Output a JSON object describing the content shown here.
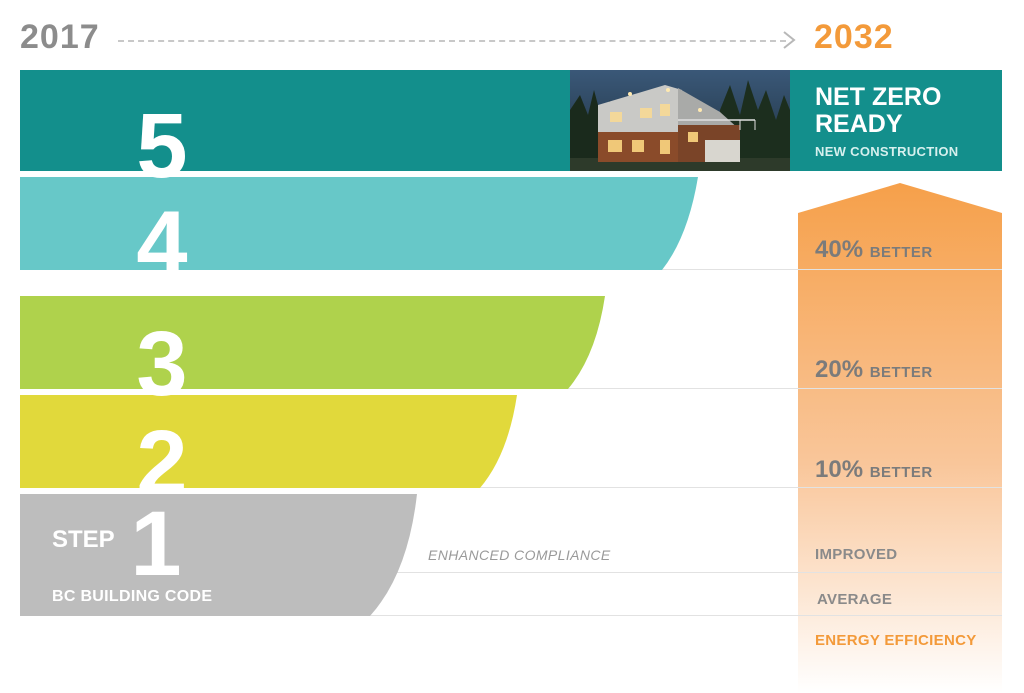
{
  "timeline": {
    "start_year": "2017",
    "end_year": "2032"
  },
  "steps": [
    {
      "number": "5",
      "color": "#138f8c"
    },
    {
      "number": "4",
      "color": "#67c8c8"
    },
    {
      "number": "3",
      "color": "#afd24c"
    },
    {
      "number": "2",
      "color": "#e1d93b"
    },
    {
      "number": "1",
      "color": "#bdbdbd"
    }
  ],
  "step1": {
    "step_word": "STEP",
    "code_label": "BC BUILDING CODE",
    "compliance_label": "ENHANCED COMPLIANCE"
  },
  "net_zero": {
    "title": "NET ZERO READY",
    "subtitle": "NEW CONSTRUCTION"
  },
  "efficiency": {
    "levels": [
      {
        "value": "40%",
        "word": "BETTER"
      },
      {
        "value": "20%",
        "word": "BETTER"
      },
      {
        "value": "10%",
        "word": "BETTER"
      }
    ],
    "improved": "IMPROVED",
    "average": "AVERAGE",
    "title": "ENERGY EFFICIENCY",
    "arrow_color": "#f7a24a"
  },
  "photo": {
    "icon": "house-photo"
  }
}
